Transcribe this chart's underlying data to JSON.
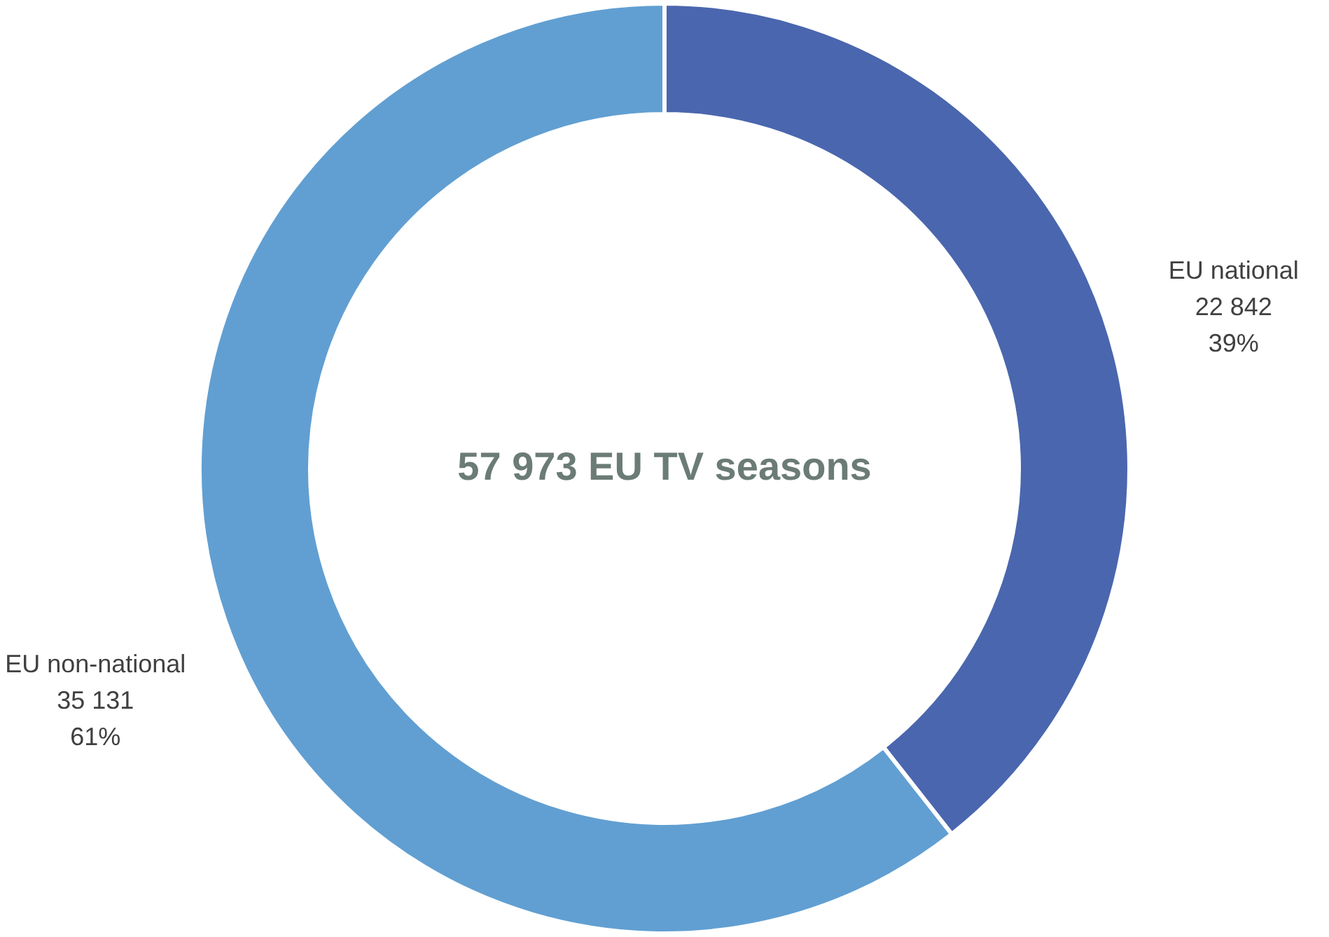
{
  "chart_data": {
    "type": "donut",
    "title": "57 973 EU TV seasons",
    "categories": [
      "EU national",
      "EU non-national"
    ],
    "values": [
      22842,
      35131
    ],
    "colors": [
      "#4a66ae",
      "#619fd2"
    ],
    "value_labels": [
      "22 842\n39%",
      "35 131\n61%"
    ]
  }
}
